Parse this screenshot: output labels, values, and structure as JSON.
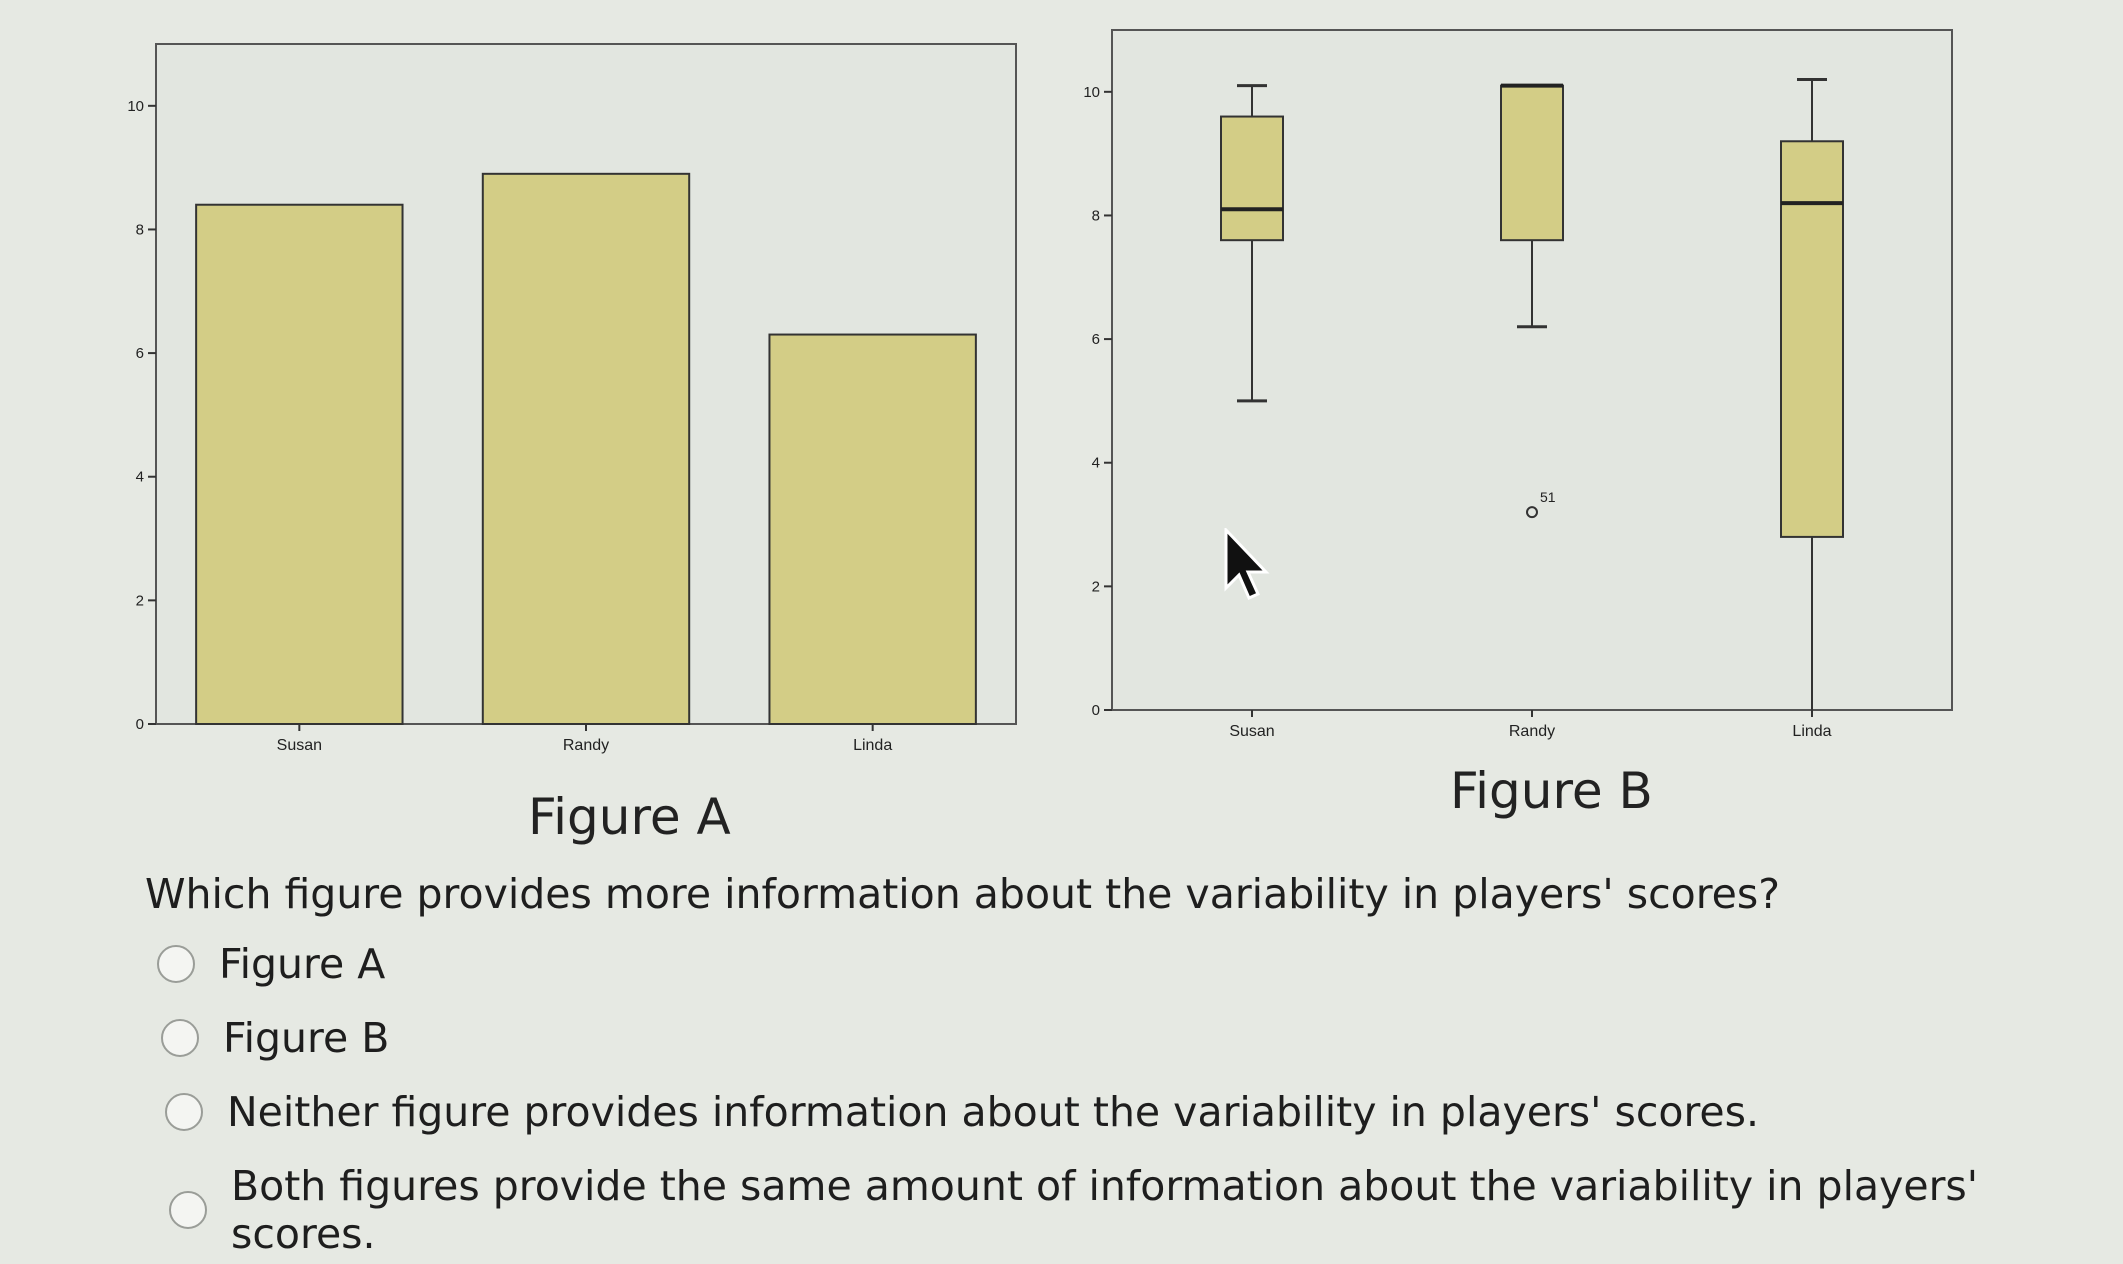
{
  "question": "Which figure provides more information about the variability in players' scores?",
  "options": [
    "Figure A",
    "Figure B",
    "Neither figure provides information about the variability in players' scores.",
    "Both figures provide the same amount of information about the variability in players' scores."
  ],
  "figure_a_caption": "Figure A",
  "figure_b_caption": "Figure B",
  "colors": {
    "box_fill": "#d3cd86",
    "plot_bg": "#e2e6e0"
  },
  "chart_data": [
    {
      "type": "bar",
      "categories": [
        "Susan",
        "Randy",
        "Linda"
      ],
      "values": [
        8.4,
        8.9,
        6.3
      ],
      "yticks": [
        0,
        2,
        4,
        6,
        8,
        10
      ],
      "ylim": [
        0,
        11
      ],
      "title": "",
      "xlabel": "",
      "ylabel": ""
    },
    {
      "type": "boxplot",
      "categories": [
        "Susan",
        "Randy",
        "Linda"
      ],
      "boxes": [
        {
          "whisker_low": 5.0,
          "q1": 7.6,
          "median": 8.1,
          "q3": 9.6,
          "whisker_high": 10.1
        },
        {
          "whisker_low": 6.2,
          "q1": 7.6,
          "median": 10.1,
          "q3": 10.1,
          "whisker_high": 10.1
        },
        {
          "whisker_low": 0,
          "q1": 2.8,
          "median": 8.2,
          "q3": 9.2,
          "whisker_high": 10.2
        }
      ],
      "outliers": [
        {
          "category": "Randy",
          "value": 3.2,
          "label": "51"
        }
      ],
      "yticks": [
        0,
        2,
        4,
        6,
        8,
        10
      ],
      "ylim": [
        0,
        11
      ],
      "title": "",
      "xlabel": "",
      "ylabel": ""
    }
  ]
}
